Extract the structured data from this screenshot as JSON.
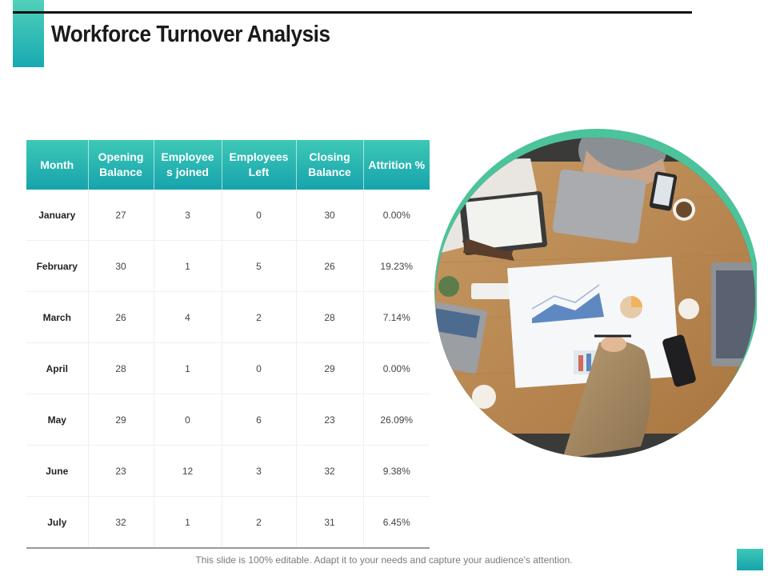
{
  "title": "Workforce Turnover Analysis",
  "table": {
    "headers": [
      "Month",
      "Opening Balance",
      "Employee s joined",
      "Employees Left",
      "Closing Balance",
      "Attrition %"
    ],
    "rows": [
      [
        "January",
        "27",
        "3",
        "0",
        "30",
        "0.00%"
      ],
      [
        "February",
        "30",
        "1",
        "5",
        "26",
        "19.23%"
      ],
      [
        "March",
        "26",
        "4",
        "2",
        "28",
        "7.14%"
      ],
      [
        "April",
        "28",
        "1",
        "0",
        "29",
        "0.00%"
      ],
      [
        "May",
        "29",
        "0",
        "6",
        "23",
        "26.09%"
      ],
      [
        "June",
        "23",
        "12",
        "3",
        "32",
        "9.38%"
      ],
      [
        "July",
        "32",
        "1",
        "2",
        "31",
        "6.45%"
      ]
    ]
  },
  "footer": "This slide is 100% editable. Adapt it to your needs and capture your audience's attention.",
  "colors": {
    "accent": "#19a9b3",
    "accent_light": "#4fd1b8",
    "ring": "#4cc39a"
  },
  "image": {
    "subject": "business meeting photo",
    "icon": "meeting-photo-icon"
  }
}
